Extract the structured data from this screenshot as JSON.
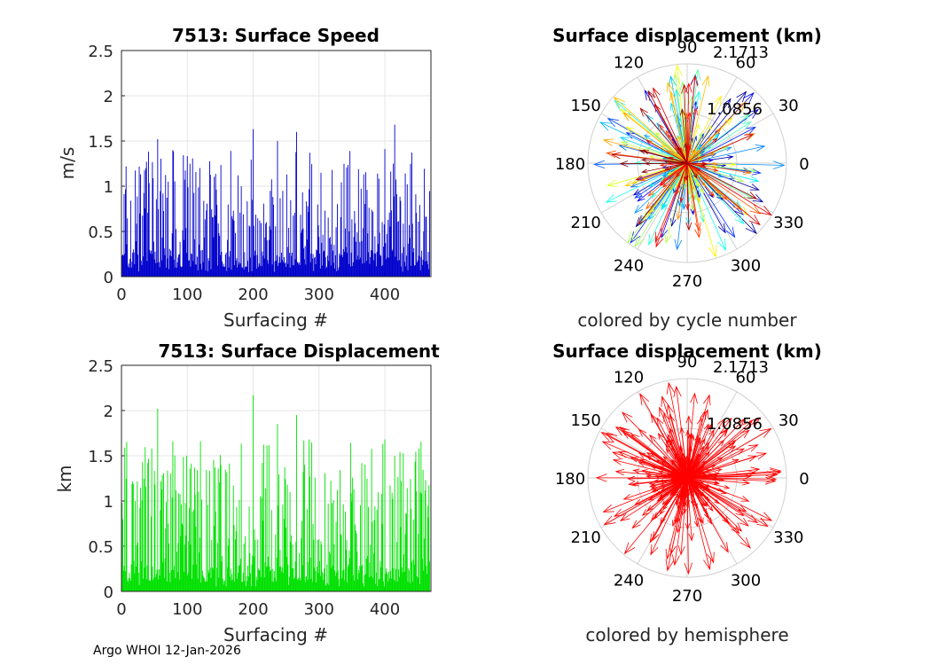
{
  "footer_text": "Argo WHOI 12-Jan-2026",
  "chart_data": [
    {
      "type": "bar",
      "title": "7513: Surface Speed",
      "xlabel": "Surfacing #",
      "ylabel": "m/s",
      "xlim": [
        0,
        470
      ],
      "ylim": [
        0,
        2.5
      ],
      "xticks": [
        "0",
        "100",
        "200",
        "300",
        "400"
      ],
      "yticks": [
        "0",
        "0.5",
        "1",
        "1.5",
        "2",
        "2.5"
      ],
      "bar_color": "#0000cc",
      "grid": true,
      "peaks": [
        {
          "x": 55,
          "y": 1.52
        },
        {
          "x": 78,
          "y": 1.4
        },
        {
          "x": 200,
          "y": 1.63
        },
        {
          "x": 237,
          "y": 1.5
        },
        {
          "x": 266,
          "y": 1.6
        },
        {
          "x": 400,
          "y": 1.41
        },
        {
          "x": 415,
          "y": 1.68
        }
      ]
    },
    {
      "type": "bar",
      "title": "7513: Surface Displacement",
      "xlabel": "Surfacing #",
      "ylabel": "km",
      "xlim": [
        0,
        470
      ],
      "ylim": [
        0,
        2.5
      ],
      "xticks": [
        "0",
        "100",
        "200",
        "300",
        "400"
      ],
      "yticks": [
        "0",
        "0.5",
        "1",
        "1.5",
        "2",
        "2.5"
      ],
      "bar_color": "#00e000",
      "grid": true,
      "peaks": [
        {
          "x": 55,
          "y": 2.02
        },
        {
          "x": 200,
          "y": 2.17
        },
        {
          "x": 237,
          "y": 1.85
        },
        {
          "x": 266,
          "y": 1.95
        },
        {
          "x": 400,
          "y": 1.68
        },
        {
          "x": 415,
          "y": 1.5
        }
      ]
    },
    {
      "type": "polar-compass",
      "title": "Surface displacement (km)",
      "caption": "colored by cycle number",
      "r_max_label": "2.1713",
      "r_mid_label": "1.0856",
      "angle_labels": [
        "0",
        "30",
        "60",
        "90",
        "120",
        "150",
        "180",
        "210",
        "240",
        "270",
        "300",
        "330"
      ],
      "color_scale": "jet"
    },
    {
      "type": "polar-compass",
      "title": "Surface displacement (km)",
      "caption": "colored by hemisphere",
      "r_max_label": "2.1713",
      "r_mid_label": "1.0856",
      "angle_labels": [
        "0",
        "30",
        "60",
        "90",
        "120",
        "150",
        "180",
        "210",
        "240",
        "270",
        "300",
        "330"
      ],
      "color_scale": "red"
    }
  ]
}
